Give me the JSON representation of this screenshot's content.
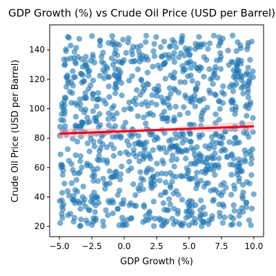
{
  "chart_data": {
    "type": "scatter",
    "title": "GDP Growth (%) vs Crude Oil Price (USD per Barrel)",
    "xlabel": "GDP Growth (%)",
    "ylabel": "Crude Oil Price (USD per Barrel)",
    "xlim": [
      -5.75,
      10.75
    ],
    "ylim": [
      13,
      157
    ],
    "x_ticks": [
      -5.0,
      -2.5,
      0.0,
      2.5,
      5.0,
      7.5,
      10.0
    ],
    "x_tick_labels": [
      "−5.0",
      "−2.5",
      "0.0",
      "2.5",
      "5.0",
      "7.5",
      "10.0"
    ],
    "y_ticks": [
      20,
      40,
      60,
      80,
      100,
      120,
      140
    ],
    "y_tick_labels": [
      "20",
      "40",
      "60",
      "80",
      "100",
      "120",
      "140"
    ],
    "grid": false,
    "point_count": 1000,
    "x_range": [
      -5,
      10
    ],
    "y_range": [
      20,
      150
    ],
    "trend_line": {
      "x": [
        -5,
        10
      ],
      "y": [
        83,
        88
      ]
    },
    "colors": {
      "points": "#1f77b4",
      "trend_line": "#e8001c",
      "trend_band": "#f4a0a8"
    }
  }
}
